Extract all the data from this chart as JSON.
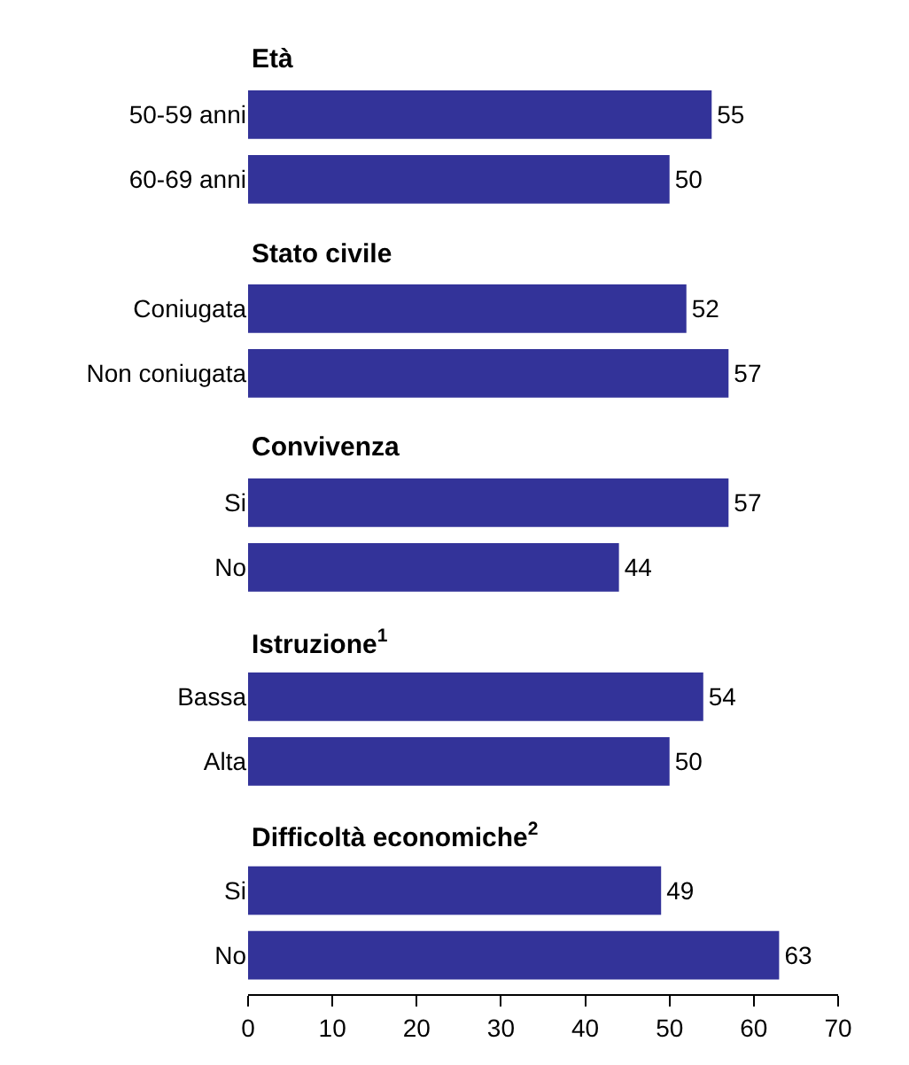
{
  "chart_data": {
    "type": "bar",
    "orientation": "horizontal",
    "categories": [
      "50-59 anni",
      "60-69 anni",
      "Coniugata",
      "Non coniugata",
      "Si",
      "No",
      "Bassa",
      "Alta",
      "Si",
      "No"
    ],
    "values": [
      55,
      50,
      52,
      57,
      57,
      44,
      54,
      50,
      49,
      63
    ],
    "color": "#333399",
    "annotations": [
      "Età",
      "Stato civile",
      "Convivenza",
      "Istruzione$^{1}$",
      "Difficoltà economiche$^{2}$"
    ],
    "xlim": [
      0,
      70
    ],
    "xticks": [
      0,
      10,
      20,
      30,
      40,
      50,
      60,
      70
    ],
    "data_labels": true
  }
}
